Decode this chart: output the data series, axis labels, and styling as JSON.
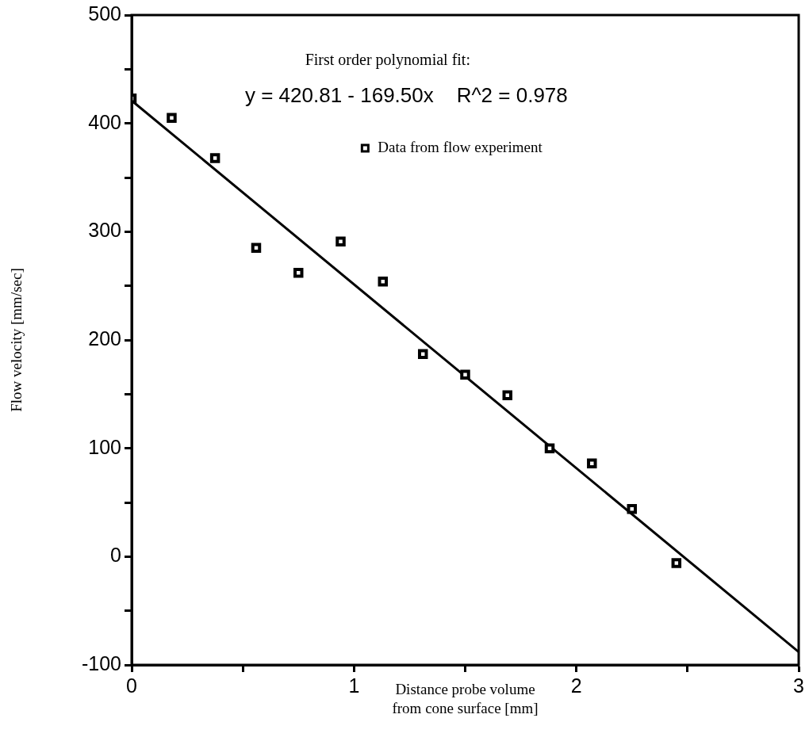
{
  "chart_data": {
    "type": "scatter",
    "xlabel": "Distance probe volume\nfrom cone surface [mm]",
    "ylabel": "Flow velocity [mm/sec]",
    "annotations": [
      "First order polynomial fit:",
      "y = 420.81 - 169.50x    R^2 = 0.978"
    ],
    "series": [
      {
        "name": "Data from flow experiment",
        "color": "#000000",
        "x": [
          0,
          0.18,
          0.375,
          0.56,
          0.75,
          0.94,
          1.13,
          1.31,
          1.5,
          1.69,
          1.88,
          2.07,
          2.25,
          2.45
        ],
        "values": [
          423,
          405,
          368,
          285,
          262,
          291,
          254,
          187,
          168,
          149,
          100,
          86,
          44,
          -6
        ]
      },
      {
        "type": "line",
        "marker": "none",
        "color": "#000000",
        "x": [
          0,
          3
        ],
        "values": [
          421,
          -88
        ]
      }
    ],
    "xlim": [
      0,
      3
    ],
    "xticks": [
      0,
      {
        "value": 0.5,
        "label": null
      },
      1,
      {
        "value": 1.5,
        "label": null
      },
      2,
      {
        "value": 2.5,
        "label": null
      },
      3
    ],
    "ylim": [
      -100,
      500
    ],
    "yticks": [
      -100,
      {
        "value": -50,
        "label": null
      },
      0,
      {
        "value": 50,
        "label": null
      },
      100,
      {
        "value": 150,
        "label": null
      },
      200,
      {
        "value": 250,
        "label": null
      },
      300,
      {
        "value": 350,
        "label": null
      },
      400,
      {
        "value": 450,
        "label": null
      },
      500
    ],
    "grid": false,
    "legend": "top right",
    "marker": "square",
    "line_style": "solid"
  }
}
